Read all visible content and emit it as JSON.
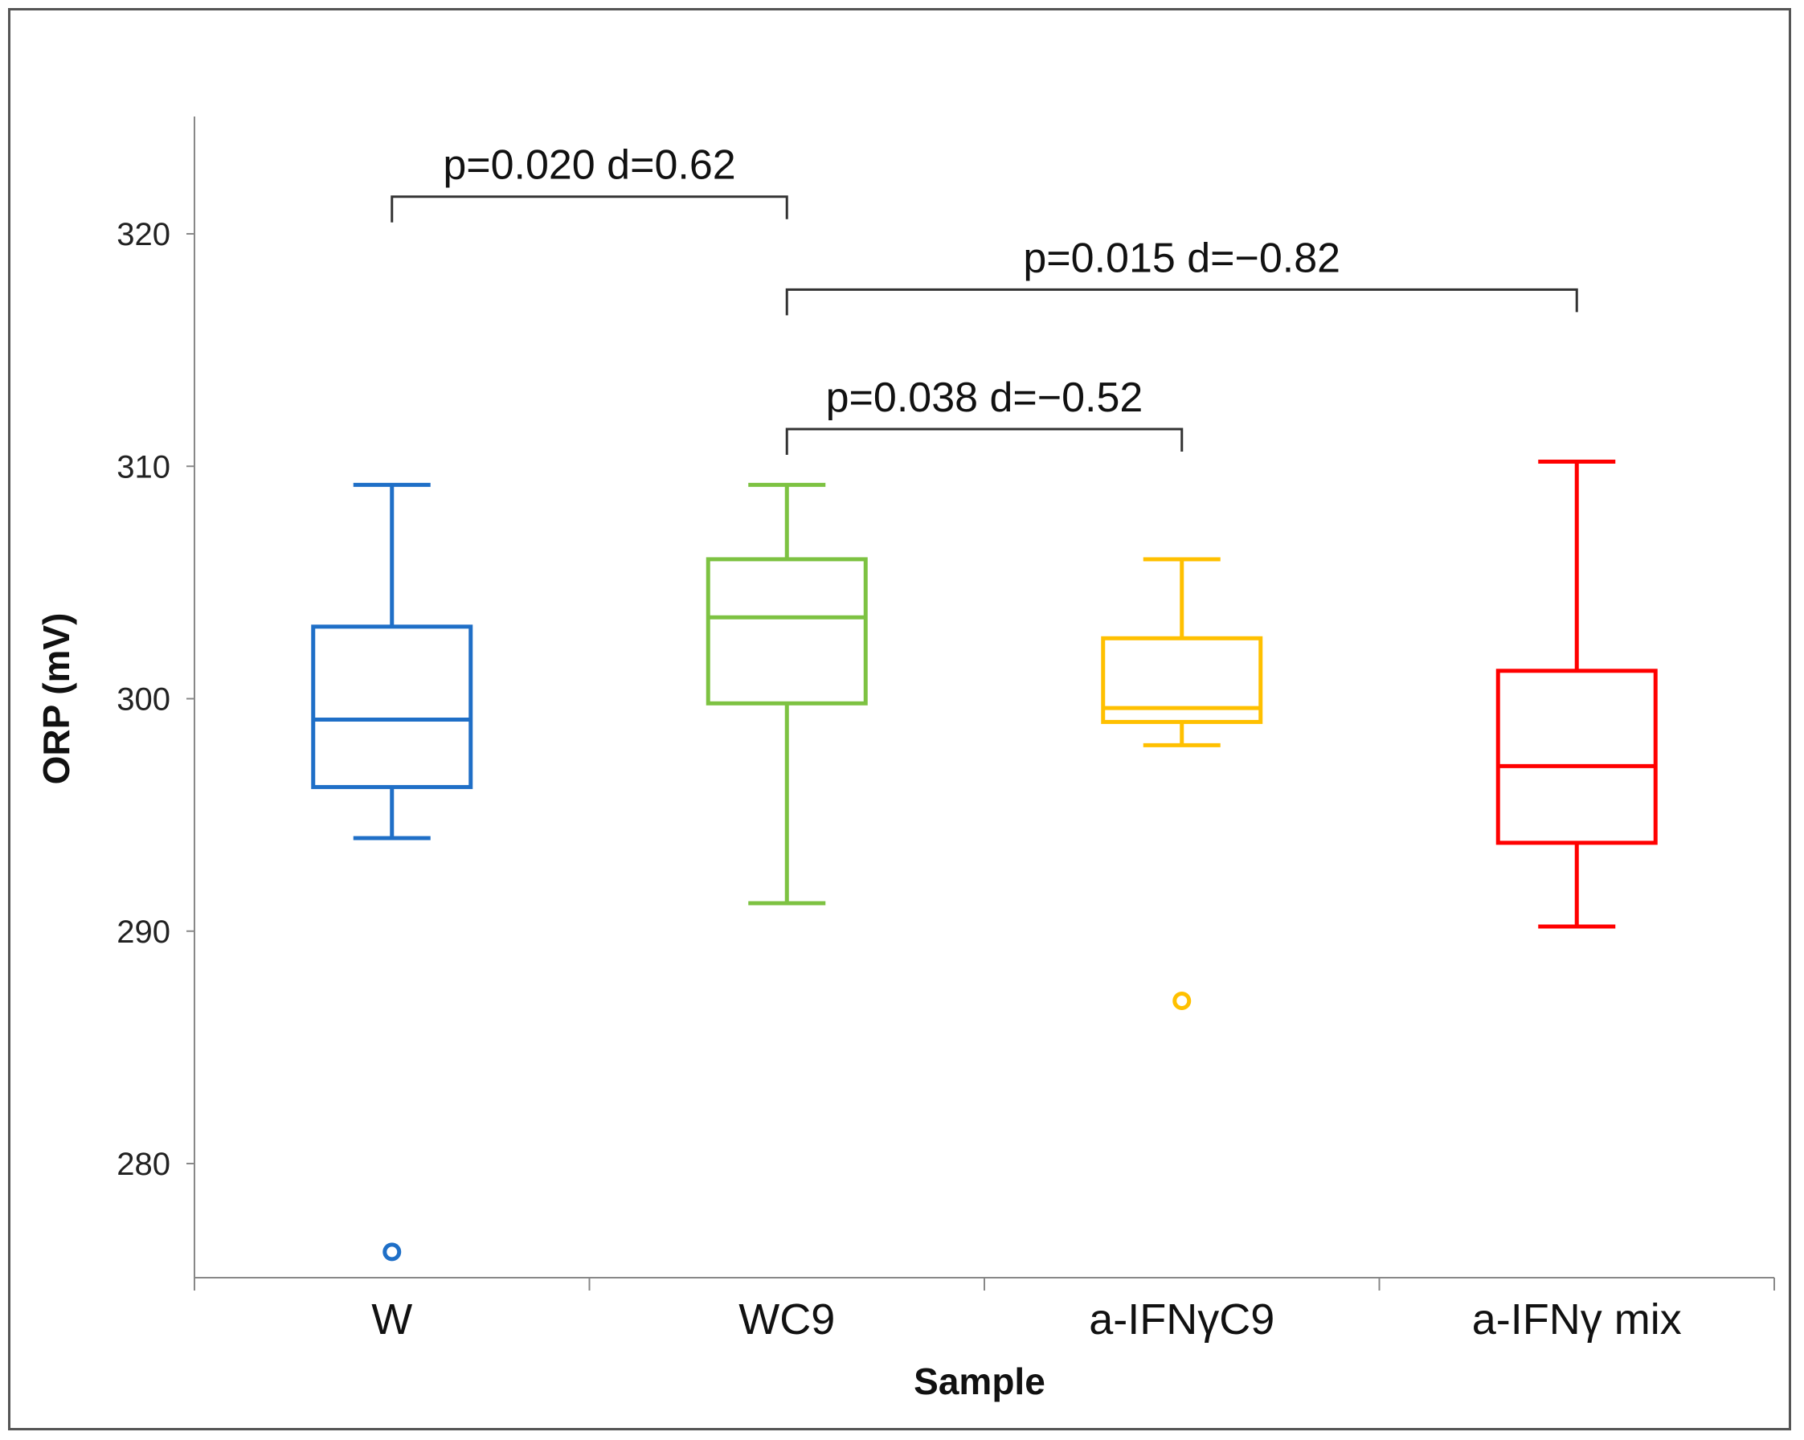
{
  "chart_data": {
    "type": "boxplot",
    "xlabel": "Sample",
    "ylabel": "ORP (mV)",
    "ylim": [
      275,
      325
    ],
    "yticks": [
      280,
      290,
      300,
      310,
      320
    ],
    "grid": false,
    "categories": [
      "W",
      "WC9",
      "a-IFNγC9",
      "a-IFNγ mix"
    ],
    "series": [
      {
        "name": "W",
        "color": "#1f6fc7",
        "whisker_low": 294,
        "q1": 296.2,
        "median": 299.1,
        "q3": 303.1,
        "whisker_high": 309.2,
        "outliers": [
          276.2
        ]
      },
      {
        "name": "WC9",
        "color": "#7dc242",
        "whisker_low": 291.2,
        "q1": 299.8,
        "median": 303.5,
        "q3": 306,
        "whisker_high": 309.2,
        "outliers": []
      },
      {
        "name": "a-IFNγC9",
        "color": "#ffc000",
        "whisker_low": 298,
        "q1": 299,
        "median": 299.6,
        "q3": 302.6,
        "whisker_high": 306,
        "outliers": [
          287
        ]
      },
      {
        "name": "a-IFNγ mix",
        "color": "#ff0000",
        "whisker_low": 290.2,
        "q1": 293.8,
        "median": 297.1,
        "q3": 301.2,
        "whisker_high": 310.2,
        "outliers": []
      }
    ],
    "annotations": [
      {
        "from": 0,
        "to": 1,
        "y": 321.6,
        "text": "p=0.020  d=0.62"
      },
      {
        "from": 1,
        "to": 3,
        "y": 317.6,
        "text": "p=0.015  d=−0.82"
      },
      {
        "from": 1,
        "to": 2,
        "y": 311.6,
        "text": "p=0.038  d=−0.52"
      }
    ]
  }
}
